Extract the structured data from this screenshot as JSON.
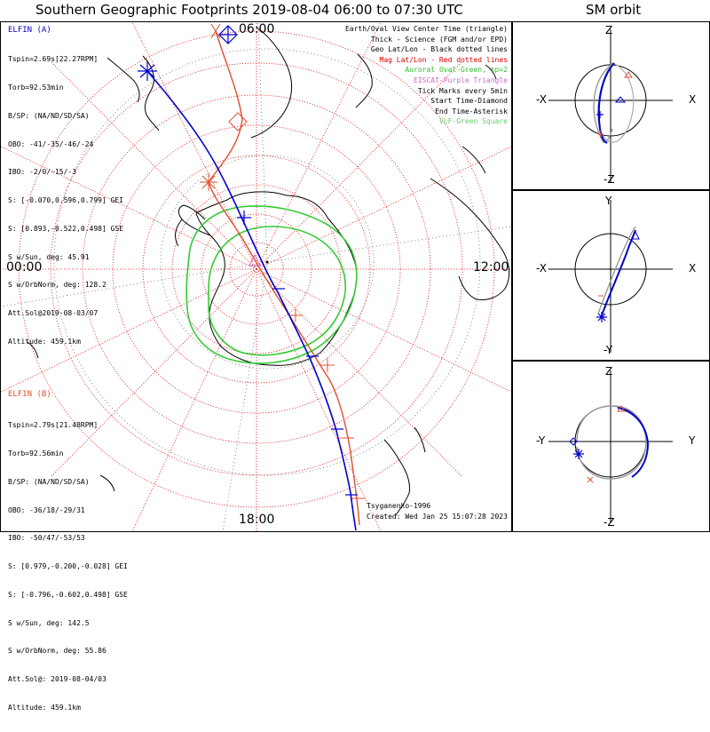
{
  "title": "Southern Geographic Footprints 2019-08-04 06:00 to 07:30 UTC",
  "sm_title": "SM orbit",
  "hours": {
    "top": "06:00",
    "left": "00:00",
    "right": "12:00",
    "bottom": "18:00"
  },
  "elfin_a": {
    "name": "ELFIN (A)",
    "color": "#0000cc",
    "lines": [
      "Tspin=2.69s[22.27RPM]",
      "Torb=92.53min",
      "B/SP: (NA/ND/SD/SA)",
      "OBO: -41/-35/-46/-24",
      "IBO: -2/0/-15/-3",
      "S: [-0.070,0.596,0.799] GEI",
      "S: [0.893,-0.522,0.498] GSE",
      "S w/Sun, deg: 45.91",
      "S w/OrbNorm, deg: 128.2",
      "Att.Sol@2019-08-03/07",
      "Altitude: 459.1km"
    ]
  },
  "elfin_b": {
    "name": "ELFIN (B)",
    "color": "#e05030",
    "lines": [
      "Tspin=2.79s[21.48RPM]",
      "Torb=92.56min",
      "B/SP: (NA/ND/SD/SA)",
      "OBO: -36/18/-29/31",
      "IBO: -50/47/-53/53",
      "S: [0.979,-0.200,-0.028] GEI",
      "S: [-0.796,-0.602,0.498] GSE",
      "S w/Sun, deg: 142.5",
      "S w/OrbNorm, deg: 55.86",
      "Att.Sol@: 2019-08-04/03",
      "Altitude: 459.1km"
    ]
  },
  "legend": [
    {
      "text": "Earth/Oval View Center Time (triangle)",
      "color": "#000000"
    },
    {
      "text": "Thick - Science (FGM and/or EPD)",
      "color": "#000000"
    },
    {
      "text": "Geo Lat/Lon - Black dotted lines",
      "color": "#000000"
    },
    {
      "text": "Mag Lat/Lon - Red dotted lines",
      "color": "#dd0000"
    },
    {
      "text": "Auroral Oval-Green, kp=2",
      "color": "#33bb33"
    },
    {
      "text": "EISCAT-Purple Triangle",
      "color": "#cc66cc"
    },
    {
      "text": "Tick Marks every 5min",
      "color": "#000000"
    },
    {
      "text": "Start Time-Diamond",
      "color": "#000000"
    },
    {
      "text": "End Time-Asterisk",
      "color": "#000000"
    },
    {
      "text": "VLF-Green Square",
      "color": "#66cc66"
    }
  ],
  "credits": {
    "model": "Tsyganenko-1996",
    "created": "Created: Wed Jan 25 15:07:28 2023"
  },
  "orbit_panels": [
    {
      "top": "Z",
      "bottom": "-Z",
      "left": "-X",
      "right": "X"
    },
    {
      "top": "Y",
      "bottom": "-Y",
      "left": "-X",
      "right": "X"
    },
    {
      "top": "Z",
      "bottom": "-Z",
      "left": "-Y",
      "right": "Y"
    }
  ],
  "colors": {
    "elfin_a": "#0000cc",
    "elfin_b": "#e05030",
    "mag_grid": "#dd0000",
    "geo_grid": "#000000",
    "auroral_oval": "#33cc33",
    "coastline": "#000000"
  }
}
